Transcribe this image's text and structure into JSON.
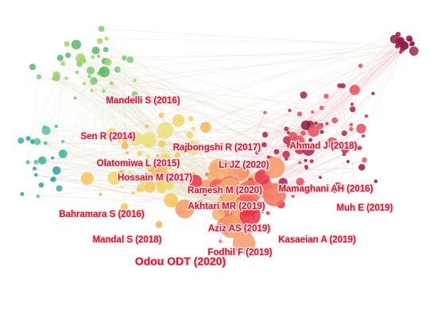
{
  "nodes": [
    {
      "label": "Mandelli S (2016)"
    },
    {
      "label": "Sen R (2014)"
    },
    {
      "label": "Rajbongshi R (2017)"
    },
    {
      "label": "Ahmad J (2018)"
    },
    {
      "label": "Olatomiwa L (2015)"
    },
    {
      "label": "Li JZ (2020)"
    },
    {
      "label": "Hossain M (2017)"
    },
    {
      "label": "Ramesh M (2020)"
    },
    {
      "label": "Mamaghani AH (2016)"
    },
    {
      "label": "Akhtari MR (2019)"
    },
    {
      "label": "Muh E (2019)"
    },
    {
      "label": "Bahramara S (2016)"
    },
    {
      "label": "Aziz AS (2019)"
    },
    {
      "label": "Kasaeian A (2019)"
    },
    {
      "label": "Mandal S (2018)"
    },
    {
      "label": "Fodhil F (2019)"
    },
    {
      "label": "Odou ODT (2020)"
    }
  ]
}
